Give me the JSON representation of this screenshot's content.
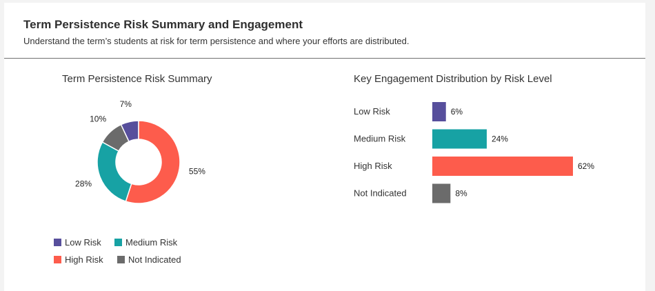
{
  "header": {
    "title": "Term Persistence Risk Summary and Engagement",
    "subtitle": "Understand the term’s students at risk for term persistence and where your efforts are distributed."
  },
  "colors": {
    "low": "#574f9c",
    "medium": "#17a2a4",
    "high": "#fd5c4c",
    "not_indicated": "#6b6b6b"
  },
  "chart_data": [
    {
      "type": "pie",
      "title": "Term Persistence Risk Summary",
      "donut": true,
      "categories": [
        "Low Risk",
        "Medium Risk",
        "High Risk",
        "Not Indicated"
      ],
      "values": [
        7,
        28,
        55,
        10
      ],
      "value_labels": [
        "7%",
        "28%",
        "55%",
        "10%"
      ],
      "legend": "bottom",
      "legend_entries": [
        "Low Risk",
        "Medium Risk",
        "High Risk",
        "Not Indicated"
      ]
    },
    {
      "type": "bar",
      "orientation": "horizontal",
      "title": "Key Engagement Distribution by Risk Level",
      "categories": [
        "Low Risk",
        "Medium Risk",
        "High Risk",
        "Not Indicated"
      ],
      "values": [
        6,
        24,
        62,
        8
      ],
      "value_labels": [
        "6%",
        "24%",
        "62%",
        "8%"
      ],
      "xlim": [
        0,
        62
      ],
      "grid": false
    }
  ]
}
